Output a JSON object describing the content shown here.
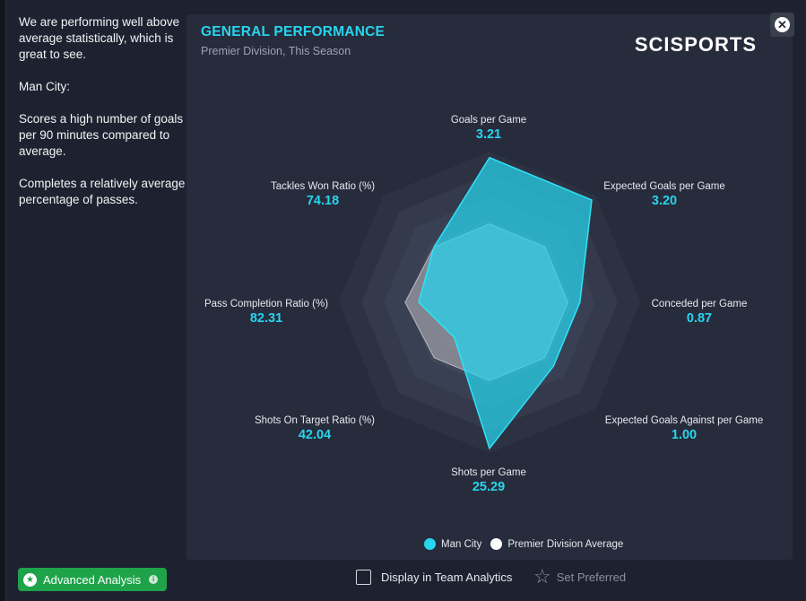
{
  "insight": {
    "lines": [
      "We are performing well above average statistically, which is great to see.",
      "Man City:",
      "Scores a high number of goals per 90 minutes compared to average.",
      "Completes a relatively average percentage of passes."
    ]
  },
  "panel": {
    "title": "GENERAL PERFORMANCE",
    "subtitle": "Premier Division, This Season",
    "brand": "SCISPORTS"
  },
  "close_icon": "close-icon",
  "metrics": [
    {
      "label": "Goals per Game",
      "value": "3.21"
    },
    {
      "label": "Expected Goals per Game",
      "value": "3.20"
    },
    {
      "label": "Conceded per Game",
      "value": "0.87"
    },
    {
      "label": "Expected Goals Against per Game",
      "value": "1.00"
    },
    {
      "label": "Shots per Game",
      "value": "25.29"
    },
    {
      "label": "Shots On Target Ratio (%)",
      "value": "42.04"
    },
    {
      "label": "Pass Completion Ratio (%)",
      "value": "82.31"
    },
    {
      "label": "Tackles Won Ratio (%)",
      "value": "74.18"
    }
  ],
  "chart_data": {
    "type": "radar",
    "categories": [
      "Goals per Game",
      "Expected Goals per Game",
      "Conceded per Game",
      "Expected Goals Against per Game",
      "Shots per Game",
      "Shots On Target Ratio (%)",
      "Pass Completion Ratio (%)",
      "Tackles Won Ratio (%)"
    ],
    "series": [
      {
        "name": "Man City",
        "color": "#27d5ee",
        "values": [
          0.96,
          0.96,
          0.6,
          0.6,
          0.97,
          0.33,
          0.47,
          0.52
        ]
      },
      {
        "name": "Premier Division Average",
        "color": "#ffffff",
        "values": [
          0.52,
          0.52,
          0.52,
          0.52,
          0.52,
          0.52,
          0.56,
          0.52
        ]
      }
    ]
  },
  "legend": {
    "man_city": "Man City",
    "average": "Premier Division Average",
    "colors": {
      "man_city": "#27d5ee",
      "average": "#ffffff"
    }
  },
  "footer": {
    "advanced_analysis": "Advanced Analysis",
    "display_in_team_analytics": "Display in Team Analytics",
    "set_preferred": "Set Preferred"
  }
}
